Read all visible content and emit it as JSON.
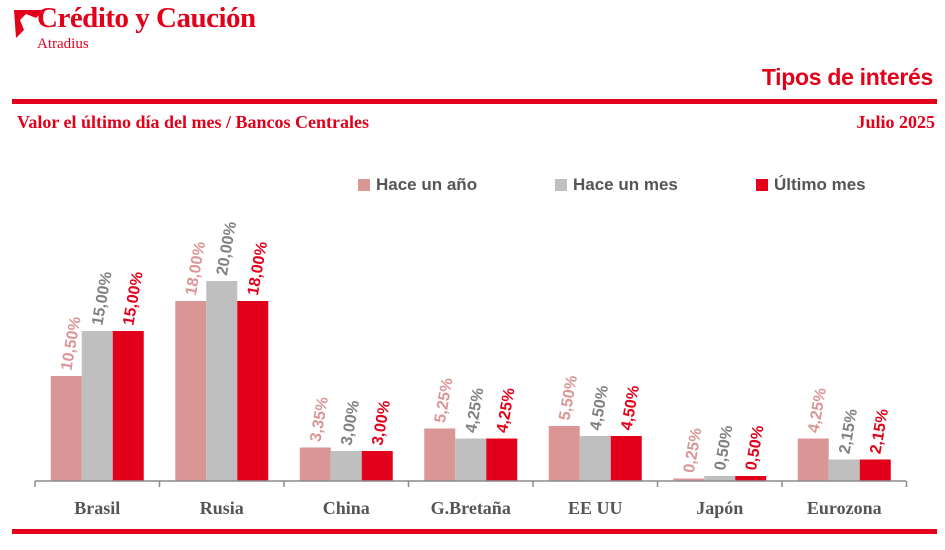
{
  "brand": {
    "name": "Crédito y Caución",
    "sub": "Atradius",
    "logo_icon": "atradius-arrow-icon",
    "color": "#e2001a"
  },
  "header": {
    "report_title": "Tipos de interés",
    "subtitle": "Valor el último día del mes / Bancos Centrales",
    "period": "Julio 2025"
  },
  "chart_data": {
    "type": "bar",
    "categories": [
      "Brasil",
      "Rusia",
      "China",
      "G.Bretaña",
      "EE UU",
      "Japón",
      "Eurozona"
    ],
    "series": [
      {
        "name": "Hace un año",
        "color": "#d99694",
        "values": [
          10.5,
          18.0,
          3.35,
          5.25,
          5.5,
          0.25,
          4.25
        ],
        "labels": [
          "10,50%",
          "18,00%",
          "3,35%",
          "5,25%",
          "5,50%",
          "0,25%",
          "4,25%"
        ]
      },
      {
        "name": "Hace un mes",
        "color": "#bfbfbf",
        "values": [
          15.0,
          20.0,
          3.0,
          4.25,
          4.5,
          0.5,
          2.15
        ],
        "labels": [
          "15,00%",
          "20,00%",
          "3,00%",
          "4,25%",
          "4,50%",
          "0,50%",
          "2,15%"
        ]
      },
      {
        "name": "Último mes",
        "color": "#e2001a",
        "values": [
          15.0,
          18.0,
          3.0,
          4.25,
          4.5,
          0.5,
          2.15
        ],
        "labels": [
          "15,00%",
          "18,00%",
          "3,00%",
          "4,25%",
          "4,50%",
          "0,50%",
          "2,15%"
        ]
      }
    ],
    "label_colors": [
      "#d99694",
      "#808080",
      "#e2001a"
    ],
    "ylim": [
      0,
      20
    ],
    "legend": "top",
    "grid": false
  }
}
